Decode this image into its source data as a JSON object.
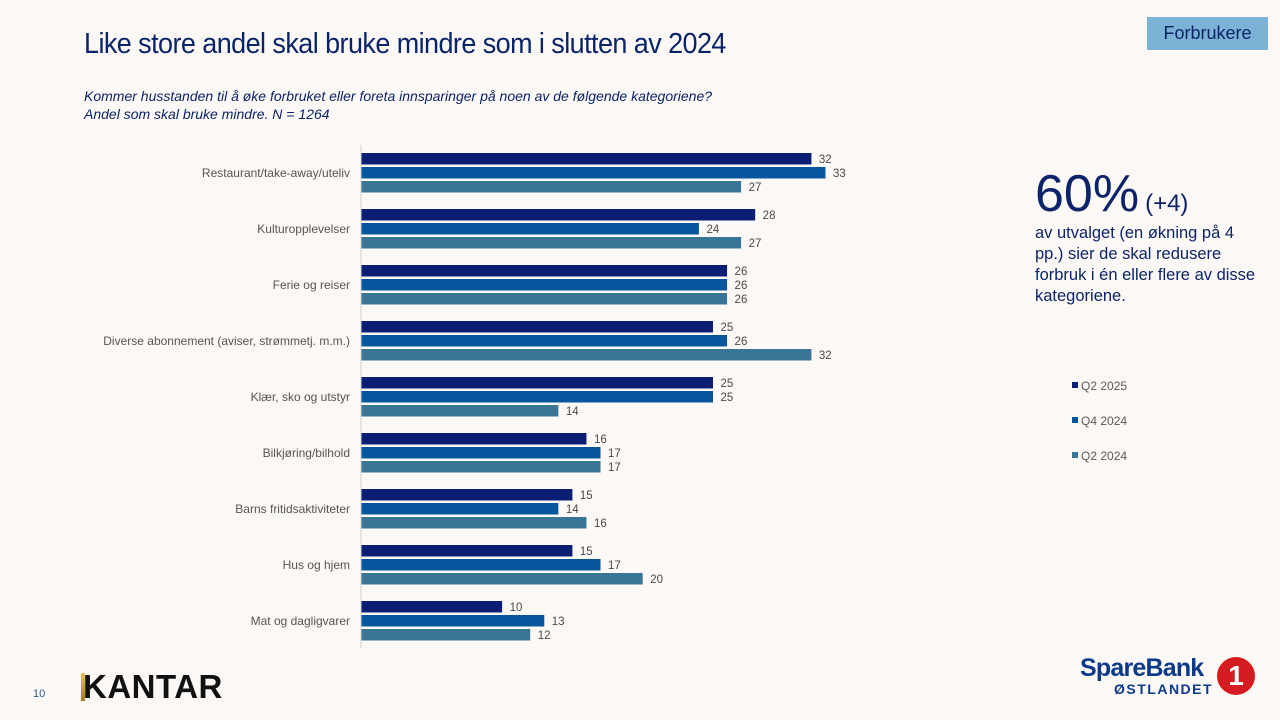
{
  "header": {
    "title": "Like store andel skal bruke mindre som i slutten av 2024",
    "subtitle_line1": "Kommer husstanden til å øke forbruket eller foreta innsparinger på noen av de følgende kategoriene?",
    "subtitle_line2": "Andel som skal bruke mindre. N = 1264",
    "badge": "Forbrukere"
  },
  "callout": {
    "big": "60%",
    "delta": "(+4)",
    "text": "av utvalget (en økning på 4 pp.) sier de skal redusere forbruk i én eller flere av disse kategoriene."
  },
  "footer": {
    "page_number": "10",
    "kantar_logo": "KANTAR",
    "bank_name": "SpareBank",
    "bank_region": "ØSTLANDET",
    "bank_mark": "1"
  },
  "chart_data": {
    "type": "bar",
    "orientation": "horizontal",
    "title": "Like store andel skal bruke mindre som i slutten av 2024",
    "xlabel": "",
    "ylabel": "",
    "xlim": [
      0,
      35
    ],
    "grid": false,
    "legend_position": "right",
    "categories": [
      "Restaurant/take-away/uteliv",
      "Kulturopplevelser",
      "Ferie og reiser",
      "Diverse abonnement (aviser, strømmetj. m.m.)",
      "Klær, sko og utstyr",
      "Bilkjøring/bilhold",
      "Barns fritidsaktiviteter",
      "Hus og hjem",
      "Mat og dagligvarer"
    ],
    "series": [
      {
        "name": "Q2 2025",
        "color": "#0a1f73",
        "values": [
          32,
          28,
          26,
          25,
          25,
          16,
          15,
          15,
          10
        ]
      },
      {
        "name": "Q4 2024",
        "color": "#06569e",
        "values": [
          33,
          24,
          26,
          26,
          25,
          17,
          14,
          17,
          13
        ]
      },
      {
        "name": "Q2 2024",
        "color": "#3a7596",
        "values": [
          27,
          27,
          26,
          32,
          14,
          17,
          16,
          20,
          12
        ]
      }
    ]
  }
}
